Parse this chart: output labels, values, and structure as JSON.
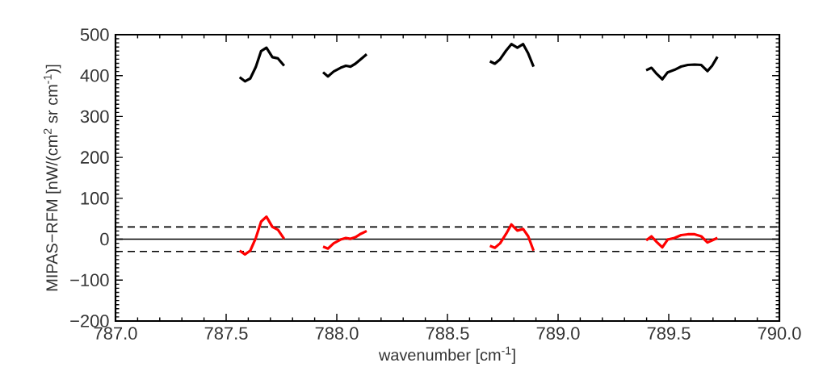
{
  "chart_data": {
    "type": "line",
    "xlabel": "wavenumber [cm$^{-1}$]",
    "ylabel": "MIPAS−RFM [nW/(cm$^{2}$ sr cm$^{-1}$)]",
    "xlim": [
      787.0,
      790.0
    ],
    "ylim": [
      -200,
      500
    ],
    "xticks": [
      {
        "value": 787.0,
        "label": "787.0"
      },
      {
        "value": 787.5,
        "label": "787.5"
      },
      {
        "value": 788.0,
        "label": "788.0"
      },
      {
        "value": 788.5,
        "label": "788.5"
      },
      {
        "value": 789.0,
        "label": "789.0"
      },
      {
        "value": 789.5,
        "label": "789.5"
      },
      {
        "value": 790.0,
        "label": "790.0"
      }
    ],
    "yticks": [
      {
        "value": -200,
        "label": "−200"
      },
      {
        "value": -100,
        "label": "−100"
      },
      0,
      100,
      200,
      300,
      400,
      500
    ],
    "marker": "none",
    "series": [
      {
        "color": "#000000",
        "x": [
          787.561,
          787.585,
          787.609,
          787.634,
          787.658,
          787.682,
          787.709,
          787.734,
          787.762
        ],
        "values": [
          396,
          386,
          393,
          421,
          460,
          468,
          445,
          442,
          424
        ]
      },
      {
        "color": "#000000",
        "x": [
          787.938,
          787.96,
          787.986,
          788.017,
          788.041,
          788.062,
          788.084,
          788.108,
          788.135
        ],
        "values": [
          408,
          398,
          410,
          419,
          424,
          422,
          429,
          440,
          452
        ]
      },
      {
        "color": "#000000",
        "x": [
          788.692,
          788.714,
          788.738,
          788.765,
          788.789,
          788.816,
          788.842,
          788.865,
          788.889
        ],
        "values": [
          435,
          429,
          440,
          461,
          477,
          468,
          477,
          454,
          422
        ]
      },
      {
        "color": "#000000",
        "x": [
          789.398,
          789.422,
          789.446,
          789.471,
          789.495,
          789.526,
          789.556,
          789.586,
          789.617,
          789.647,
          789.675,
          789.696,
          789.72
        ],
        "values": [
          413,
          419,
          404,
          391,
          408,
          414,
          422,
          426,
          427,
          426,
          411,
          424,
          446
        ]
      },
      {
        "color": "#ff0000",
        "x": [
          787.561,
          787.585,
          787.609,
          787.634,
          787.658,
          787.682,
          787.709,
          787.734,
          787.762
        ],
        "values": [
          -28,
          -37,
          -28,
          3,
          43,
          55,
          30,
          23,
          1
        ]
      },
      {
        "color": "#ff0000",
        "x": [
          787.938,
          787.96,
          787.986,
          788.017,
          788.041,
          788.062,
          788.084,
          788.108,
          788.135
        ],
        "values": [
          -18,
          -23,
          -10,
          -1,
          3,
          1,
          5,
          13,
          20
        ]
      },
      {
        "color": "#ff0000",
        "x": [
          788.692,
          788.714,
          788.738,
          788.765,
          788.789,
          788.816,
          788.842,
          788.865,
          788.889
        ],
        "values": [
          -16,
          -21,
          -10,
          13,
          36,
          21,
          25,
          7,
          -28
        ]
      },
      {
        "color": "#ff0000",
        "x": [
          789.398,
          789.422,
          789.446,
          789.471,
          789.495,
          789.526,
          789.556,
          789.586,
          789.617,
          789.647,
          789.675,
          789.696,
          789.72
        ],
        "values": [
          -3,
          7,
          -7,
          -20,
          -1,
          3,
          10,
          12,
          12,
          7,
          -8,
          -3,
          3
        ]
      }
    ],
    "ref_lines": [
      {
        "axis": "y",
        "value": 0,
        "color": "#000000",
        "line_style": "solid"
      },
      {
        "axis": "y",
        "value": 30,
        "color": "#000000",
        "line_style": "dashed"
      },
      {
        "axis": "y",
        "value": -30,
        "color": "#000000",
        "line_style": "dashed"
      }
    ]
  }
}
